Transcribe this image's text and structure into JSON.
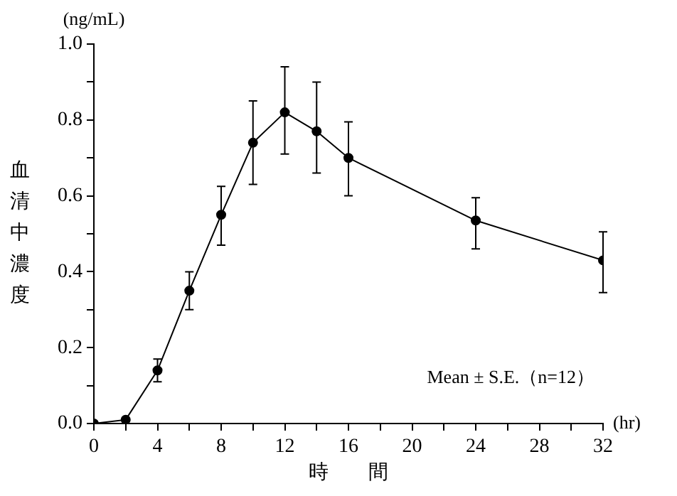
{
  "chart_data": {
    "type": "line",
    "xlabel": "時　　間",
    "ylabel": "血清中濃度",
    "annotations": [
      "(ng/mL)",
      "(hr)",
      "Mean ± S.E.（n=12）"
    ],
    "x": [
      0,
      2,
      4,
      6,
      8,
      10,
      12,
      14,
      16,
      24,
      32
    ],
    "series": [
      {
        "color": "#000000",
        "values": [
          0.0,
          0.01,
          0.14,
          0.35,
          0.55,
          0.74,
          0.82,
          0.77,
          0.7,
          0.535,
          0.43
        ],
        "errors": [
          null,
          null,
          [
            0.11,
            0.17
          ],
          [
            0.3,
            0.4
          ],
          [
            0.47,
            0.625
          ],
          [
            0.63,
            0.85
          ],
          [
            0.71,
            0.94
          ],
          [
            0.66,
            0.9
          ],
          [
            0.6,
            0.795
          ],
          [
            0.46,
            0.595
          ],
          [
            0.345,
            0.505
          ]
        ]
      }
    ],
    "xlim": [
      0,
      32
    ],
    "xticks": [
      0,
      {
        "value": 2,
        "label": null
      },
      4,
      {
        "value": 6,
        "label": null
      },
      8,
      {
        "value": 10,
        "label": null
      },
      12,
      {
        "value": 14,
        "label": null
      },
      16,
      {
        "value": 18,
        "label": null
      },
      20,
      {
        "value": 22,
        "label": null
      },
      24,
      {
        "value": 26,
        "label": null
      },
      28,
      {
        "value": 30,
        "label": null
      },
      32
    ],
    "ylim": [
      0,
      1
    ],
    "yticks": [
      {
        "value": 0,
        "label": "0.0"
      },
      {
        "value": 0.1,
        "label": null
      },
      0.2,
      {
        "value": 0.3,
        "label": null
      },
      0.4,
      {
        "value": 0.5,
        "label": null
      },
      0.6,
      {
        "value": 0.7,
        "label": null
      },
      0.8,
      {
        "value": 0.9,
        "label": null
      },
      {
        "value": 1,
        "label": "1.0"
      }
    ],
    "grid": false,
    "legend": false,
    "marker": "circle",
    "line_style": "solid"
  }
}
